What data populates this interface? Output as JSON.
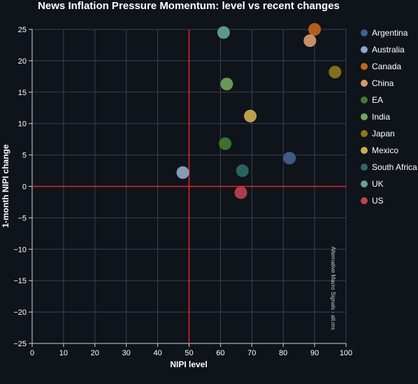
{
  "chart_data": {
    "type": "scatter",
    "title": "News Inflation Pressure Momentum: level vs recent changes",
    "xlabel": "NIPI level",
    "ylabel": "1-month NIPI change",
    "xlim": [
      0,
      100
    ],
    "ylim": [
      -25,
      25
    ],
    "xticks": [
      0,
      10,
      20,
      30,
      40,
      50,
      60,
      70,
      80,
      90,
      100
    ],
    "yticks": [
      25,
      20,
      15,
      10,
      5,
      0,
      -5,
      -10,
      -15,
      -20,
      -25
    ],
    "reference_lines": {
      "x": 50,
      "y": 0,
      "color": "#e0282e"
    },
    "grid": true,
    "legend_position": "right",
    "annotation": "Alternative Macro Signals - alt.ms",
    "series": [
      {
        "name": "Argentina",
        "color": "#41628f",
        "x": 82,
        "y": 4.5
      },
      {
        "name": "Australia",
        "color": "#8fa7c6",
        "x": 48,
        "y": 2.2
      },
      {
        "name": "Canada",
        "color": "#c0651b",
        "x": 90,
        "y": 25
      },
      {
        "name": "China",
        "color": "#d39c6c",
        "x": 88.5,
        "y": 23.2
      },
      {
        "name": "EA",
        "color": "#3f7a32",
        "x": 61.5,
        "y": 6.8
      },
      {
        "name": "India",
        "color": "#6fa55d",
        "x": 62,
        "y": 16.3
      },
      {
        "name": "Japan",
        "color": "#8a7a1d",
        "x": 96.5,
        "y": 18.2
      },
      {
        "name": "Mexico",
        "color": "#cbab55",
        "x": 69.5,
        "y": 11.2
      },
      {
        "name": "South Africa",
        "color": "#2a6a69",
        "x": 67,
        "y": 2.5
      },
      {
        "name": "UK",
        "color": "#65a19e",
        "x": 61,
        "y": 24.5
      },
      {
        "name": "US",
        "color": "#b9434d",
        "x": 66.5,
        "y": -1
      }
    ]
  }
}
